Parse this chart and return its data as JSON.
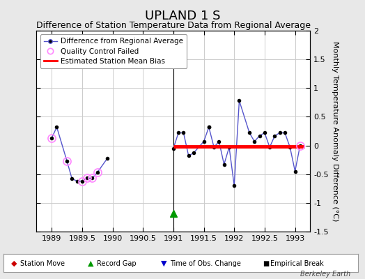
{
  "title": "UPLAND 1 S",
  "subtitle": "Difference of Station Temperature Data from Regional Average",
  "ylabel": "Monthly Temperature Anomaly Difference (°C)",
  "xlim": [
    1988.75,
    1993.25
  ],
  "ylim": [
    -1.5,
    2.0
  ],
  "yticks": [
    -1.5,
    -1.0,
    -0.5,
    0.0,
    0.5,
    1.0,
    1.5,
    2.0
  ],
  "xticks": [
    1989,
    1989.5,
    1990,
    1990.5,
    1991,
    1991.5,
    1992,
    1992.5,
    1993
  ],
  "xticklabels": [
    "1989",
    "1989.5",
    "1990",
    "1990.5",
    "1991",
    "1991.5",
    "1992",
    "1992.5",
    "1993"
  ],
  "background_color": "#e8e8e8",
  "plot_bg_color": "#ffffff",
  "grid_color": "#cccccc",
  "line_color": "#5555cc",
  "marker_color": "#000000",
  "bias_line_color": "#ff0000",
  "bias_value": -0.02,
  "bias_x_start": 1991.0,
  "bias_x_end": 1993.15,
  "qc_fail_color": "#ff88ff",
  "segment1_x": [
    1989.0,
    1989.083,
    1989.25,
    1989.333,
    1989.417,
    1989.5,
    1989.583,
    1989.667,
    1989.75,
    1989.917
  ],
  "segment1_y": [
    0.13,
    0.32,
    -0.27,
    -0.58,
    -0.62,
    -0.62,
    -0.57,
    -0.57,
    -0.47,
    -0.22
  ],
  "segment2_x": [
    1991.0,
    1991.083,
    1991.167,
    1991.25,
    1991.333,
    1991.5,
    1991.583,
    1991.583,
    1991.667,
    1991.75,
    1991.833,
    1991.917,
    1992.0,
    1992.083,
    1992.25,
    1992.333,
    1992.417,
    1992.5,
    1992.583,
    1992.667,
    1992.75,
    1992.833,
    1992.917,
    1993.0,
    1993.083
  ],
  "segment2_y": [
    -0.05,
    0.22,
    0.22,
    -0.18,
    -0.13,
    0.07,
    0.32,
    0.32,
    -0.03,
    0.07,
    -0.33,
    -0.03,
    -0.7,
    0.78,
    0.22,
    0.07,
    0.17,
    0.22,
    -0.03,
    0.17,
    0.22,
    0.22,
    -0.03,
    -0.45,
    0.0
  ],
  "qc_fail_x": [
    1989.0,
    1989.25,
    1989.5,
    1989.583,
    1989.667,
    1989.75,
    1993.083
  ],
  "qc_fail_y": [
    0.13,
    -0.27,
    -0.62,
    -0.57,
    -0.57,
    -0.47,
    0.0
  ],
  "record_gap_x": [
    1991.0
  ],
  "record_gap_y": [
    -1.18
  ],
  "vline_x": 1991.0,
  "watermark": "Berkeley Earth",
  "title_fontsize": 13,
  "subtitle_fontsize": 9,
  "tick_fontsize": 8,
  "ylabel_fontsize": 8,
  "green_marker_color": "#009900",
  "red_marker_color": "#cc0000",
  "blue_marker_color": "#0000cc"
}
